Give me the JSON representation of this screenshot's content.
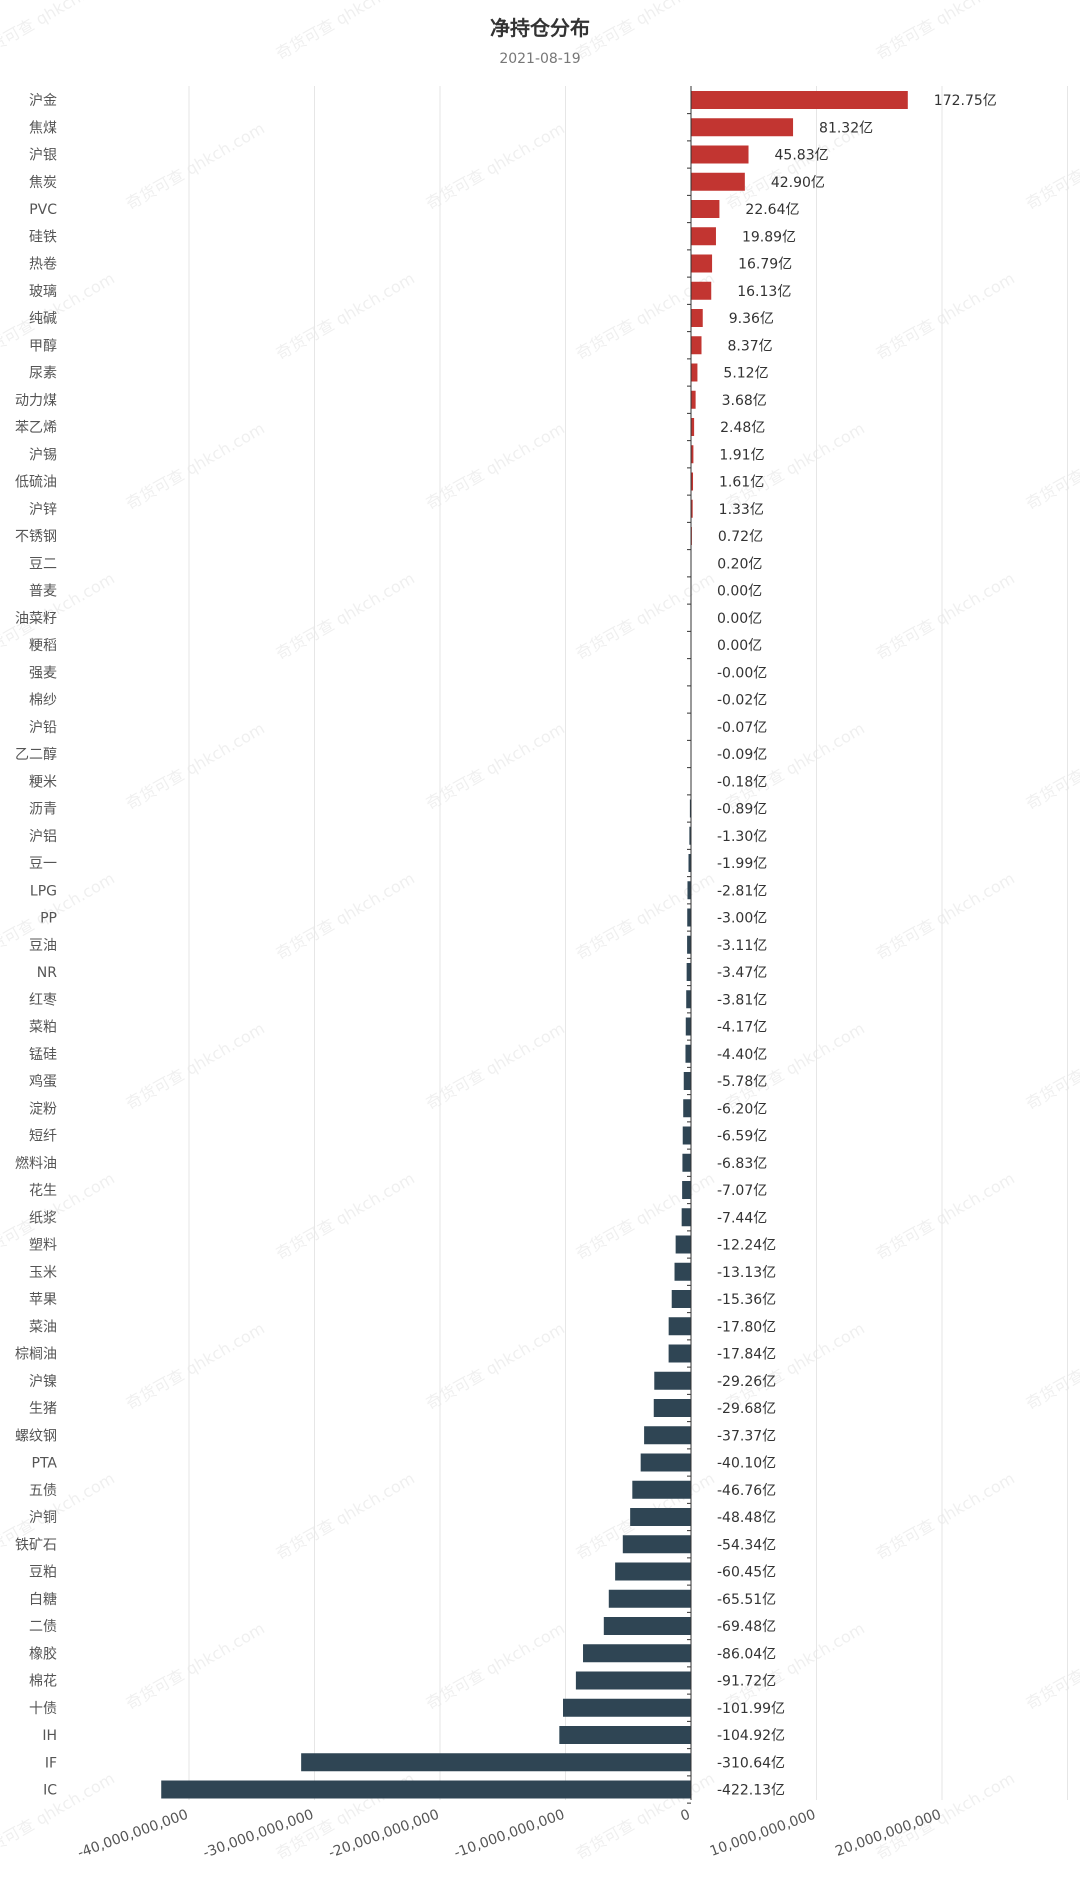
{
  "watermark": "奇货可查 qhkch.com",
  "colors": {
    "positive": "#c23531",
    "negative": "#2f4554",
    "grid": "#e6e6e6",
    "axis": "#333333"
  },
  "chart_data": {
    "type": "bar",
    "orientation": "horizontal",
    "title": "净持仓分布",
    "subtitle": "2021-08-19",
    "xlim": [
      -40000000000,
      30000000000
    ],
    "x_ticks": [
      -40000000000,
      -30000000000,
      -20000000000,
      -10000000000,
      0,
      10000000000,
      20000000000
    ],
    "x_tick_labels": [
      "-40,000,000,000",
      "-30,000,000,000",
      "-20,000,000,000",
      "-10,000,000,000",
      "0",
      "10,000,000,000",
      "20,000,000,000"
    ],
    "unit": "亿",
    "categories": [
      "沪金",
      "焦煤",
      "沪银",
      "焦炭",
      "PVC",
      "硅铁",
      "热卷",
      "玻璃",
      "纯碱",
      "甲醇",
      "尿素",
      "动力煤",
      "苯乙烯",
      "沪锡",
      "低硫油",
      "沪锌",
      "不锈钢",
      "豆二",
      "普麦",
      "油菜籽",
      "粳稻",
      "强麦",
      "棉纱",
      "沪铅",
      "乙二醇",
      "粳米",
      "沥青",
      "沪铝",
      "豆一",
      "LPG",
      "PP",
      "豆油",
      "NR",
      "红枣",
      "菜粕",
      "锰硅",
      "鸡蛋",
      "淀粉",
      "短纤",
      "燃料油",
      "花生",
      "纸浆",
      "塑料",
      "玉米",
      "苹果",
      "菜油",
      "棕榈油",
      "沪镍",
      "生猪",
      "螺纹钢",
      "PTA",
      "五债",
      "沪铜",
      "铁矿石",
      "豆粕",
      "白糖",
      "二债",
      "橡胶",
      "棉花",
      "十债",
      "IH",
      "IF",
      "IC"
    ],
    "values": [
      172.75,
      81.32,
      45.83,
      42.9,
      22.64,
      19.89,
      16.79,
      16.13,
      9.36,
      8.37,
      5.12,
      3.68,
      2.48,
      1.91,
      1.61,
      1.33,
      0.72,
      0.2,
      0.0,
      0.0,
      0.0,
      -0.0,
      -0.02,
      -0.07,
      -0.09,
      -0.18,
      -0.89,
      -1.3,
      -1.99,
      -2.81,
      -3.0,
      -3.11,
      -3.47,
      -3.81,
      -4.17,
      -4.4,
      -5.78,
      -6.2,
      -6.59,
      -6.83,
      -7.07,
      -7.44,
      -12.24,
      -13.13,
      -15.36,
      -17.8,
      -17.84,
      -29.26,
      -29.68,
      -37.37,
      -40.1,
      -46.76,
      -48.48,
      -54.34,
      -60.45,
      -65.51,
      -69.48,
      -86.04,
      -91.72,
      -101.99,
      -104.92,
      -310.64,
      -422.13
    ],
    "value_labels": [
      "172.75亿",
      "81.32亿",
      "45.83亿",
      "42.90亿",
      "22.64亿",
      "19.89亿",
      "16.79亿",
      "16.13亿",
      "9.36亿",
      "8.37亿",
      "5.12亿",
      "3.68亿",
      "2.48亿",
      "1.91亿",
      "1.61亿",
      "1.33亿",
      "0.72亿",
      "0.20亿",
      "0.00亿",
      "0.00亿",
      "0.00亿",
      "-0.00亿",
      "-0.02亿",
      "-0.07亿",
      "-0.09亿",
      "-0.18亿",
      "-0.89亿",
      "-1.30亿",
      "-1.99亿",
      "-2.81亿",
      "-3.00亿",
      "-3.11亿",
      "-3.47亿",
      "-3.81亿",
      "-4.17亿",
      "-4.40亿",
      "-5.78亿",
      "-6.20亿",
      "-6.59亿",
      "-6.83亿",
      "-7.07亿",
      "-7.44亿",
      "-12.24亿",
      "-13.13亿",
      "-15.36亿",
      "-17.80亿",
      "-17.84亿",
      "-29.26亿",
      "-29.68亿",
      "-37.37亿",
      "-40.10亿",
      "-46.76亿",
      "-48.48亿",
      "-54.34亿",
      "-60.45亿",
      "-65.51亿",
      "-69.48亿",
      "-86.04亿",
      "-91.72亿",
      "-101.99亿",
      "-104.92亿",
      "-310.64亿",
      "-422.13亿"
    ],
    "grid": true,
    "legend": "none"
  }
}
